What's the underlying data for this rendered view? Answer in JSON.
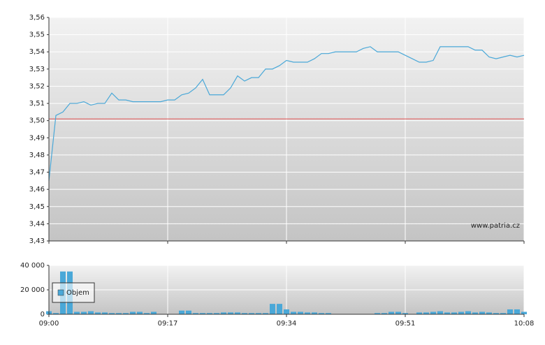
{
  "chart_data": [
    {
      "type": "line",
      "x": [
        "09:00",
        "09:01",
        "09:02",
        "09:03",
        "09:04",
        "09:05",
        "09:06",
        "09:07",
        "09:08",
        "09:09",
        "09:10",
        "09:11",
        "09:12",
        "09:13",
        "09:14",
        "09:15",
        "09:16",
        "09:17",
        "09:18",
        "09:19",
        "09:20",
        "09:21",
        "09:22",
        "09:23",
        "09:24",
        "09:25",
        "09:26",
        "09:27",
        "09:28",
        "09:29",
        "09:30",
        "09:31",
        "09:32",
        "09:33",
        "09:34",
        "09:35",
        "09:36",
        "09:37",
        "09:38",
        "09:39",
        "09:40",
        "09:41",
        "09:42",
        "09:43",
        "09:44",
        "09:45",
        "09:46",
        "09:47",
        "09:48",
        "09:49",
        "09:50",
        "09:51",
        "09:52",
        "09:53",
        "09:54",
        "09:55",
        "09:56",
        "09:57",
        "09:58",
        "09:59",
        "10:00",
        "10:01",
        "10:02",
        "10:03",
        "10:04",
        "10:05",
        "10:06",
        "10:07",
        "10:08"
      ],
      "values": [
        3.465,
        3.503,
        3.505,
        3.51,
        3.51,
        3.511,
        3.509,
        3.51,
        3.51,
        3.516,
        3.512,
        3.512,
        3.511,
        3.511,
        3.511,
        3.511,
        3.511,
        3.512,
        3.512,
        3.515,
        3.516,
        3.519,
        3.524,
        3.515,
        3.515,
        3.515,
        3.519,
        3.526,
        3.523,
        3.525,
        3.525,
        3.53,
        3.53,
        3.532,
        3.535,
        3.534,
        3.534,
        3.534,
        3.536,
        3.539,
        3.539,
        3.54,
        3.54,
        3.54,
        3.54,
        3.542,
        3.543,
        3.54,
        3.54,
        3.54,
        3.54,
        3.538,
        3.536,
        3.534,
        3.534,
        3.535,
        3.543,
        3.543,
        3.543,
        3.543,
        3.543,
        3.541,
        3.541,
        3.537,
        3.536,
        3.537,
        3.538,
        3.537,
        3.538
      ],
      "color": "#4aa8d8",
      "reference_line": 3.501,
      "reference_color": "#e05050",
      "xlim": [
        "09:00",
        "10:08"
      ],
      "ylim": [
        3.43,
        3.56
      ],
      "yticks": [
        {
          "value": 3.43,
          "label": "3,43"
        },
        {
          "value": 3.44,
          "label": "3,44"
        },
        {
          "value": 3.45,
          "label": "3,45"
        },
        {
          "value": 3.46,
          "label": "3,46"
        },
        {
          "value": 3.47,
          "label": "3,47"
        },
        {
          "value": 3.48,
          "label": "3,48"
        },
        {
          "value": 3.49,
          "label": "3,49"
        },
        {
          "value": 3.5,
          "label": "3,50"
        },
        {
          "value": 3.51,
          "label": "3,51"
        },
        {
          "value": 3.52,
          "label": "3,52"
        },
        {
          "value": 3.53,
          "label": "3,53"
        },
        {
          "value": 3.54,
          "label": "3,54"
        },
        {
          "value": 3.55,
          "label": "3,55"
        },
        {
          "value": 3.56,
          "label": "3,56"
        }
      ],
      "grid": true,
      "annotation": "www.patria.cz"
    },
    {
      "type": "bar",
      "x": [
        "09:00",
        "09:01",
        "09:02",
        "09:03",
        "09:04",
        "09:05",
        "09:06",
        "09:07",
        "09:08",
        "09:09",
        "09:10",
        "09:11",
        "09:12",
        "09:13",
        "09:14",
        "09:15",
        "09:16",
        "09:17",
        "09:18",
        "09:19",
        "09:20",
        "09:21",
        "09:22",
        "09:23",
        "09:24",
        "09:25",
        "09:26",
        "09:27",
        "09:28",
        "09:29",
        "09:30",
        "09:31",
        "09:32",
        "09:33",
        "09:34",
        "09:35",
        "09:36",
        "09:37",
        "09:38",
        "09:39",
        "09:40",
        "09:41",
        "09:42",
        "09:43",
        "09:44",
        "09:45",
        "09:46",
        "09:47",
        "09:48",
        "09:49",
        "09:50",
        "09:51",
        "09:52",
        "09:53",
        "09:54",
        "09:55",
        "09:56",
        "09:57",
        "09:58",
        "09:59",
        "10:00",
        "10:01",
        "10:02",
        "10:03",
        "10:04",
        "10:05",
        "10:06",
        "10:07",
        "10:08"
      ],
      "series": [
        {
          "name": "Objem",
          "color": "#4aa8d8",
          "values": [
            2500,
            1000,
            35000,
            35000,
            2000,
            2000,
            2500,
            1500,
            1500,
            1000,
            1000,
            1000,
            2000,
            2000,
            1000,
            2000,
            0,
            0,
            0,
            3000,
            3000,
            1000,
            1000,
            1000,
            1000,
            1500,
            1500,
            1500,
            1000,
            1000,
            1000,
            1000,
            8500,
            8500,
            4000,
            2000,
            2000,
            1500,
            1500,
            1000,
            1000,
            0,
            0,
            0,
            0,
            0,
            0,
            1000,
            1000,
            2000,
            2000,
            1000,
            0,
            1500,
            1500,
            2000,
            2500,
            1500,
            1500,
            2000,
            2500,
            1500,
            2000,
            1500,
            1000,
            1000,
            4000,
            4000,
            2000
          ]
        }
      ],
      "xlim": [
        "09:00",
        "10:08"
      ],
      "xticks": [
        "09:00",
        "09:17",
        "09:34",
        "09:51",
        "10:08"
      ],
      "ylim": [
        0,
        40000
      ],
      "yticks": [
        0,
        {
          "value": 20000,
          "label": "20 000"
        },
        {
          "value": 40000,
          "label": "40 000"
        }
      ],
      "grid": true,
      "legend": "top-left"
    }
  ]
}
